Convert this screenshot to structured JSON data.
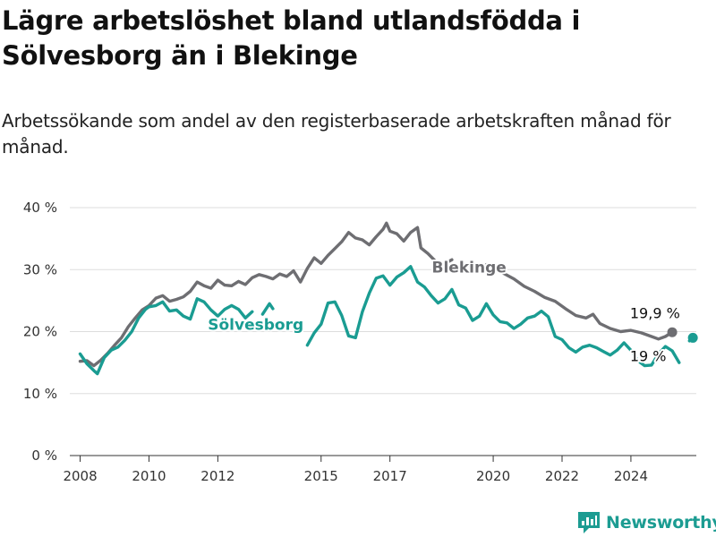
{
  "title": "Lägre arbetslöshet bland utlandsfödda i Sölvesborg än i Blekinge",
  "subtitle": "Arbetssökande som andel av den registerbaserade arbetskraften månad för månad.",
  "brand": "Newsworthy",
  "colors": {
    "solvesborg": "#1a9c92",
    "blekinge": "#6e6e72",
    "grid": "#dddddd",
    "brand": "#1c9c92"
  },
  "chart_data": {
    "type": "line",
    "title": "Lägre arbetslöshet bland utlandsfödda i Sölvesborg än i Blekinge",
    "ylim": [
      0,
      40
    ],
    "xlim": [
      2007.7,
      2025.9
    ],
    "y_ticks": [
      {
        "value": 0,
        "label": "0 %"
      },
      {
        "value": 10,
        "label": "10 %"
      },
      {
        "value": 20,
        "label": "20 %"
      },
      {
        "value": 30,
        "label": "30 %"
      },
      {
        "value": 40,
        "label": "40 %"
      }
    ],
    "x_ticks": [
      {
        "value": 2008,
        "label": "2008"
      },
      {
        "value": 2010,
        "label": "2010"
      },
      {
        "value": 2012,
        "label": "2012"
      },
      {
        "value": 2015,
        "label": "2015"
      },
      {
        "value": 2017,
        "label": "2017"
      },
      {
        "value": 2020,
        "label": "2020"
      },
      {
        "value": 2022,
        "label": "2022"
      },
      {
        "value": 2024,
        "label": "2024"
      }
    ],
    "grid": true,
    "series": [
      {
        "name": "Blekinge",
        "end_label": "19,9 %",
        "label_pos": {
          "x": 2019.3,
          "y": 29.5
        },
        "end_label_pos": {
          "x": 2024.7,
          "y": 22.2
        },
        "segments": [
          [
            [
              2008.0,
              15.2
            ],
            [
              2008.2,
              15.3
            ],
            [
              2008.4,
              14.5
            ],
            [
              2008.6,
              15.4
            ],
            [
              2008.8,
              16.5
            ],
            [
              2009.0,
              17.8
            ],
            [
              2009.2,
              19.0
            ],
            [
              2009.4,
              20.8
            ],
            [
              2009.6,
              22.2
            ],
            [
              2009.8,
              23.5
            ],
            [
              2010.0,
              24.2
            ],
            [
              2010.2,
              25.4
            ],
            [
              2010.4,
              25.8
            ],
            [
              2010.6,
              24.9
            ],
            [
              2010.8,
              25.2
            ],
            [
              2011.0,
              25.6
            ],
            [
              2011.2,
              26.5
            ],
            [
              2011.4,
              28.0
            ],
            [
              2011.6,
              27.4
            ],
            [
              2011.8,
              27.0
            ],
            [
              2012.0,
              28.3
            ],
            [
              2012.2,
              27.5
            ],
            [
              2012.4,
              27.4
            ],
            [
              2012.6,
              28.1
            ],
            [
              2012.8,
              27.6
            ],
            [
              2013.0,
              28.7
            ],
            [
              2013.2,
              29.2
            ],
            [
              2013.4,
              28.9
            ],
            [
              2013.6,
              28.5
            ],
            [
              2013.8,
              29.3
            ],
            [
              2014.0,
              28.9
            ],
            [
              2014.2,
              29.8
            ],
            [
              2014.4,
              28.0
            ],
            [
              2014.6,
              30.2
            ],
            [
              2014.8,
              31.9
            ],
            [
              2015.0,
              31.0
            ],
            [
              2015.2,
              32.3
            ],
            [
              2015.4,
              33.4
            ],
            [
              2015.6,
              34.5
            ],
            [
              2015.8,
              36.0
            ],
            [
              2016.0,
              35.1
            ],
            [
              2016.2,
              34.8
            ],
            [
              2016.4,
              34.0
            ],
            [
              2016.6,
              35.3
            ],
            [
              2016.8,
              36.5
            ],
            [
              2016.9,
              37.5
            ],
            [
              2017.0,
              36.2
            ],
            [
              2017.2,
              35.8
            ],
            [
              2017.4,
              34.6
            ],
            [
              2017.6,
              36.0
            ],
            [
              2017.8,
              36.8
            ],
            [
              2017.9,
              33.5
            ],
            [
              2018.1,
              32.6
            ],
            [
              2018.3,
              31.5
            ]
          ],
          [
            [
              2018.6,
              31.0
            ],
            [
              2018.8,
              31.6
            ]
          ],
          [
            [
              2019.8,
              30.8
            ],
            [
              2020.0,
              30.2
            ],
            [
              2020.3,
              29.4
            ],
            [
              2020.6,
              28.5
            ],
            [
              2020.9,
              27.3
            ],
            [
              2021.2,
              26.5
            ],
            [
              2021.5,
              25.5
            ],
            [
              2021.8,
              24.9
            ],
            [
              2022.1,
              23.7
            ],
            [
              2022.4,
              22.6
            ],
            [
              2022.7,
              22.2
            ],
            [
              2022.9,
              22.8
            ],
            [
              2023.1,
              21.3
            ],
            [
              2023.4,
              20.5
            ],
            [
              2023.7,
              20.0
            ],
            [
              2024.0,
              20.2
            ],
            [
              2024.3,
              19.8
            ],
            [
              2024.6,
              19.2
            ],
            [
              2024.8,
              18.8
            ],
            [
              2025.0,
              19.2
            ],
            [
              2025.2,
              19.9
            ]
          ]
        ]
      },
      {
        "name": "Sölvesborg",
        "end_label": "19 %",
        "label_pos": {
          "x": 2013.1,
          "y": 20.3
        },
        "end_label_pos": {
          "x": 2024.5,
          "y": 15.2
        },
        "segments": [
          [
            [
              2008.0,
              16.4
            ],
            [
              2008.2,
              14.8
            ],
            [
              2008.4,
              13.7
            ],
            [
              2008.5,
              13.2
            ],
            [
              2008.7,
              15.8
            ],
            [
              2008.9,
              17.0
            ],
            [
              2009.1,
              17.5
            ],
            [
              2009.3,
              18.6
            ],
            [
              2009.5,
              20.0
            ],
            [
              2009.7,
              22.2
            ],
            [
              2009.9,
              23.6
            ],
            [
              2010.0,
              24.0
            ],
            [
              2010.2,
              24.2
            ],
            [
              2010.4,
              24.8
            ],
            [
              2010.6,
              23.3
            ],
            [
              2010.8,
              23.5
            ],
            [
              2011.0,
              22.5
            ],
            [
              2011.2,
              22.0
            ],
            [
              2011.4,
              25.3
            ],
            [
              2011.6,
              24.8
            ],
            [
              2011.8,
              23.5
            ],
            [
              2012.0,
              22.5
            ],
            [
              2012.2,
              23.6
            ],
            [
              2012.4,
              24.2
            ],
            [
              2012.6,
              23.6
            ],
            [
              2012.8,
              22.2
            ],
            [
              2013.0,
              23.2
            ]
          ],
          [
            [
              2013.3,
              22.8
            ],
            [
              2013.5,
              24.5
            ],
            [
              2013.6,
              23.7
            ]
          ],
          [
            [
              2014.6,
              17.8
            ],
            [
              2014.8,
              19.8
            ],
            [
              2015.0,
              21.2
            ],
            [
              2015.2,
              24.6
            ],
            [
              2015.4,
              24.8
            ],
            [
              2015.6,
              22.6
            ],
            [
              2015.8,
              19.3
            ],
            [
              2016.0,
              19.0
            ],
            [
              2016.2,
              23.2
            ],
            [
              2016.4,
              26.2
            ],
            [
              2016.6,
              28.6
            ],
            [
              2016.8,
              29.0
            ],
            [
              2017.0,
              27.5
            ],
            [
              2017.2,
              28.8
            ],
            [
              2017.4,
              29.5
            ],
            [
              2017.6,
              30.5
            ],
            [
              2017.8,
              28.0
            ],
            [
              2018.0,
              27.2
            ],
            [
              2018.2,
              25.8
            ],
            [
              2018.4,
              24.6
            ],
            [
              2018.6,
              25.3
            ],
            [
              2018.8,
              26.8
            ],
            [
              2019.0,
              24.3
            ],
            [
              2019.2,
              23.8
            ],
            [
              2019.4,
              21.8
            ],
            [
              2019.6,
              22.5
            ],
            [
              2019.8,
              24.5
            ],
            [
              2020.0,
              22.7
            ],
            [
              2020.2,
              21.6
            ],
            [
              2020.4,
              21.4
            ],
            [
              2020.6,
              20.5
            ],
            [
              2020.8,
              21.2
            ],
            [
              2021.0,
              22.2
            ],
            [
              2021.2,
              22.5
            ],
            [
              2021.4,
              23.3
            ],
            [
              2021.6,
              22.4
            ],
            [
              2021.8,
              19.2
            ],
            [
              2022.0,
              18.7
            ],
            [
              2022.2,
              17.4
            ],
            [
              2022.4,
              16.7
            ],
            [
              2022.6,
              17.5
            ],
            [
              2022.8,
              17.8
            ],
            [
              2023.0,
              17.4
            ],
            [
              2023.2,
              16.8
            ],
            [
              2023.4,
              16.2
            ],
            [
              2023.6,
              17.0
            ],
            [
              2023.8,
              18.2
            ],
            [
              2024.0,
              17.0
            ],
            [
              2024.2,
              15.3
            ],
            [
              2024.4,
              14.5
            ],
            [
              2024.6,
              14.6
            ],
            [
              2024.8,
              16.4
            ],
            [
              2025.0,
              17.6
            ],
            [
              2025.2,
              16.9
            ],
            [
              2025.4,
              15.0
            ]
          ],
          [
            [
              2025.7,
              18.5
            ],
            [
              2025.8,
              19.0
            ]
          ]
        ]
      }
    ]
  }
}
